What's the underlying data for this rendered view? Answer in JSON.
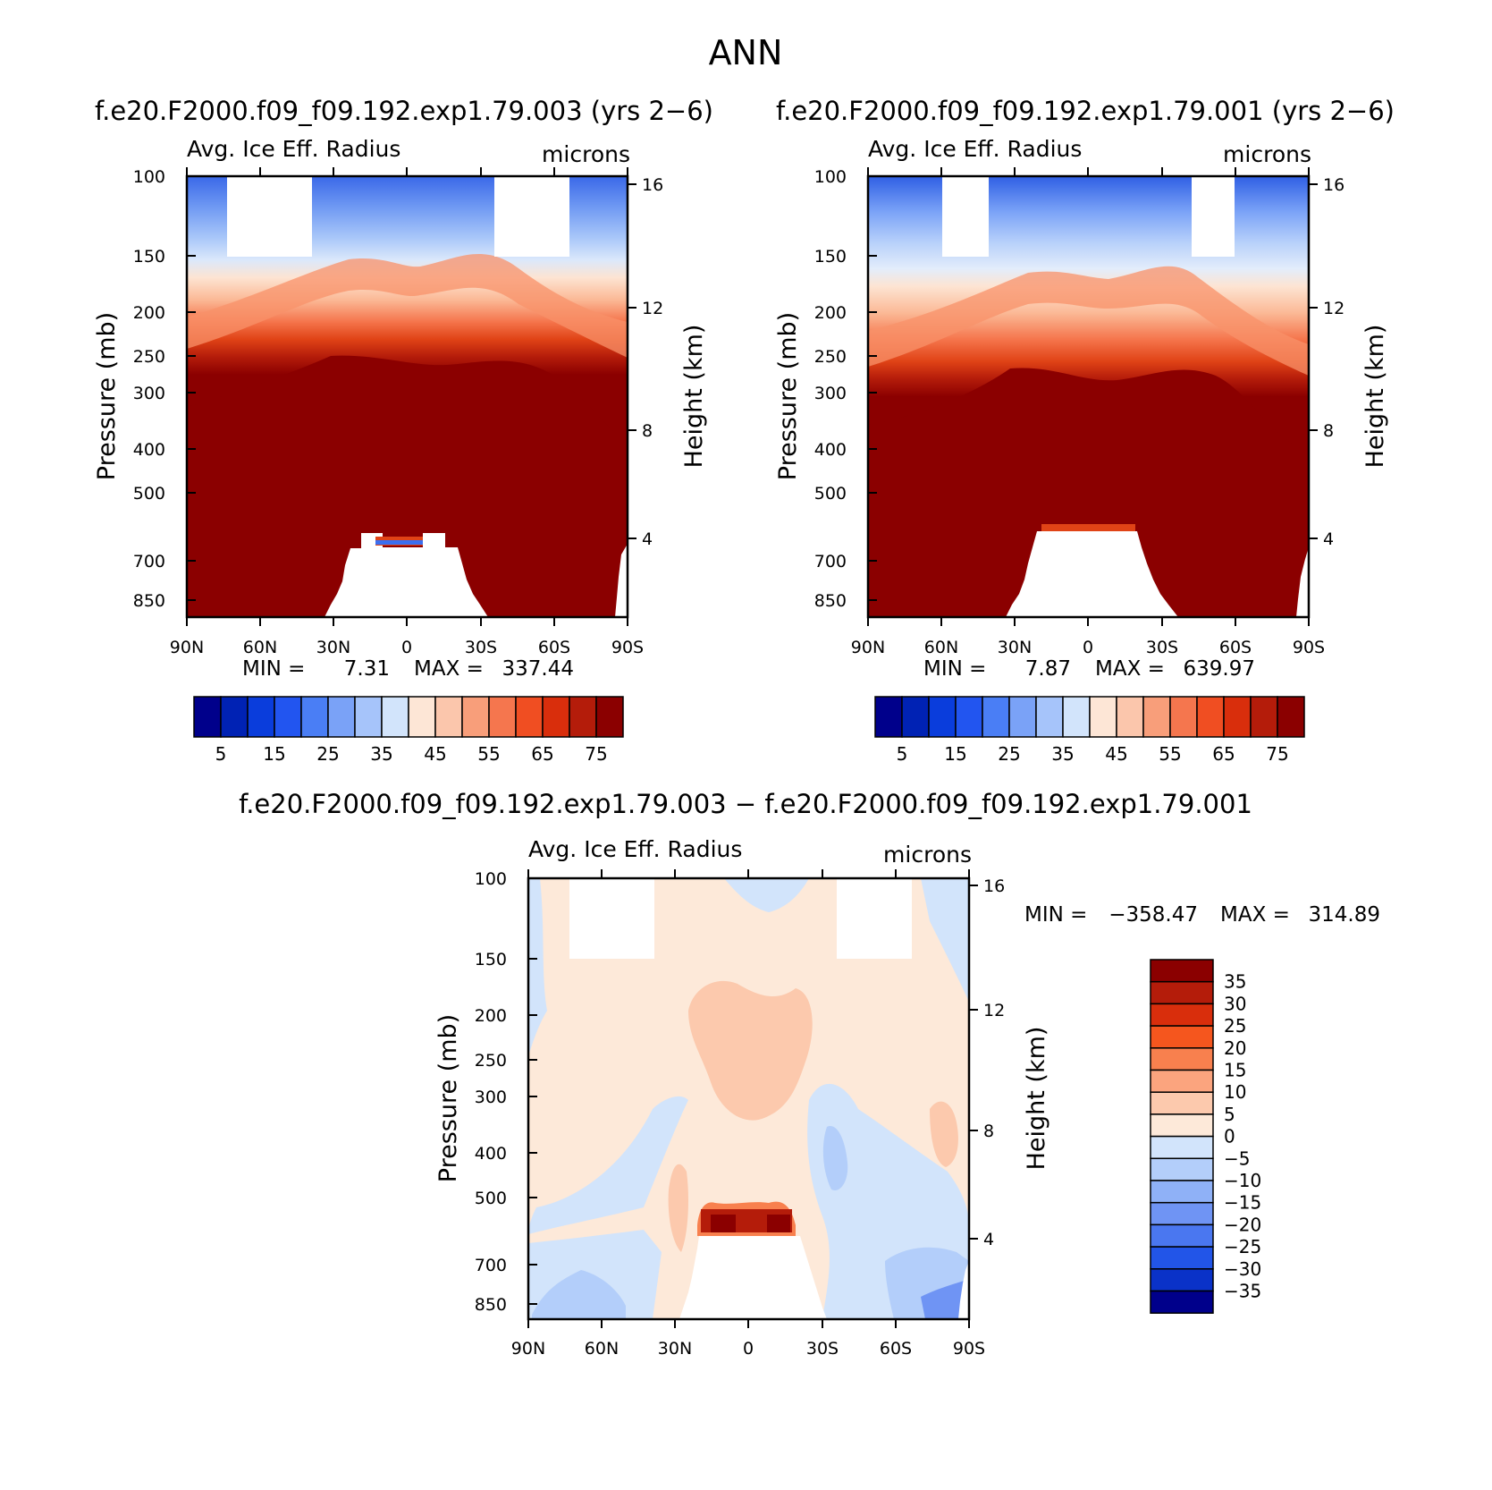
{
  "figure": {
    "title": "ANN",
    "top_left_title": "f.e20.F2000.f09_f09.192.exp1.79.003 (yrs 2−6)",
    "top_right_title": "f.e20.F2000.f09_f09.192.exp1.79.001 (yrs 2−6)",
    "diff_title": "f.e20.F2000.f09_f09.192.exp1.79.003 − f.e20.F2000.f09_f09.192.exp1.79.001"
  },
  "chart_data": [
    {
      "id": "panel-a",
      "type": "heatmap",
      "variable": "Avg. Ice Eff. Radius",
      "units": "microns",
      "xlabel": "",
      "ylabel": "Pressure (mb)",
      "y2label": "Height (km)",
      "x_tick_labels": [
        "90N",
        "60N",
        "30N",
        "0",
        "30S",
        "60S",
        "90S"
      ],
      "x_range": [
        90,
        -90
      ],
      "y_ticks": [
        100,
        150,
        200,
        250,
        300,
        400,
        500,
        700,
        850
      ],
      "y_range": [
        100,
        1000
      ],
      "height_ticks": [
        16,
        12,
        8,
        4
      ],
      "min_label": "MIN =",
      "min_value": "7.31",
      "max_label": "MAX =",
      "max_value": "337.44",
      "contour_levels": [
        0,
        5,
        10,
        15,
        20,
        25,
        30,
        35,
        40,
        45,
        50,
        55,
        60,
        65,
        70,
        75,
        80
      ],
      "colorbar_labels": [
        "5",
        "15",
        "25",
        "35",
        "45",
        "55",
        "65",
        "75"
      ],
      "colors": [
        "#00008b",
        "#0022b4",
        "#0a3ddc",
        "#2255f0",
        "#4a7ef5",
        "#7aa2f7",
        "#a6c4fa",
        "#d2e4fb",
        "#fde6d6",
        "#fbc6ac",
        "#f89e7a",
        "#f5764e",
        "#f04e22",
        "#d92e0c",
        "#b41c0a",
        "#8b0000"
      ]
    },
    {
      "id": "panel-b",
      "type": "heatmap",
      "variable": "Avg. Ice Eff. Radius",
      "units": "microns",
      "xlabel": "",
      "ylabel": "Pressure (mb)",
      "y2label": "Height (km)",
      "x_tick_labels": [
        "90N",
        "60N",
        "30N",
        "0",
        "30S",
        "60S",
        "90S"
      ],
      "x_range": [
        90,
        -90
      ],
      "y_ticks": [
        100,
        150,
        200,
        250,
        300,
        400,
        500,
        700,
        850
      ],
      "y_range": [
        100,
        1000
      ],
      "height_ticks": [
        16,
        12,
        8,
        4
      ],
      "min_label": "MIN =",
      "min_value": "7.87",
      "max_label": "MAX =",
      "max_value": "639.97",
      "contour_levels": [
        0,
        5,
        10,
        15,
        20,
        25,
        30,
        35,
        40,
        45,
        50,
        55,
        60,
        65,
        70,
        75,
        80
      ],
      "colorbar_labels": [
        "5",
        "15",
        "25",
        "35",
        "45",
        "55",
        "65",
        "75"
      ],
      "colors": [
        "#00008b",
        "#0022b4",
        "#0a3ddc",
        "#2255f0",
        "#4a7ef5",
        "#7aa2f7",
        "#a6c4fa",
        "#d2e4fb",
        "#fde6d6",
        "#fbc6ac",
        "#f89e7a",
        "#f5764e",
        "#f04e22",
        "#d92e0c",
        "#b41c0a",
        "#8b0000"
      ]
    },
    {
      "id": "panel-diff",
      "type": "heatmap",
      "variable": "Avg. Ice Eff. Radius",
      "units": "microns",
      "xlabel": "",
      "ylabel": "Pressure (mb)",
      "y2label": "Height (km)",
      "x_tick_labels": [
        "90N",
        "60N",
        "30N",
        "0",
        "30S",
        "60S",
        "90S"
      ],
      "x_range": [
        90,
        -90
      ],
      "y_ticks": [
        100,
        150,
        200,
        250,
        300,
        400,
        500,
        700,
        850
      ],
      "y_range": [
        100,
        1000
      ],
      "height_ticks": [
        16,
        12,
        8,
        4
      ],
      "min_label": "MIN =",
      "min_value": "−358.47",
      "max_label": "MAX =",
      "max_value": "314.89",
      "contour_levels": [
        35,
        30,
        25,
        20,
        15,
        10,
        5,
        0,
        -5,
        -10,
        -15,
        -20,
        -25,
        -30,
        -35
      ],
      "colorbar_labels": [
        "35",
        "30",
        "25",
        "20",
        "15",
        "10",
        "5",
        "0",
        "−5",
        "−10",
        "−15",
        "−20",
        "−25",
        "−30",
        "−35"
      ],
      "colors": [
        "#8b0000",
        "#b41c0a",
        "#d92e0c",
        "#f5561e",
        "#f8804e",
        "#fba47e",
        "#fcc9ad",
        "#fde9d9",
        "#d2e4fb",
        "#b3cefa",
        "#8fb1f7",
        "#6f94f4",
        "#4a77f0",
        "#2255e8",
        "#0a32c8",
        "#00008b"
      ]
    }
  ]
}
